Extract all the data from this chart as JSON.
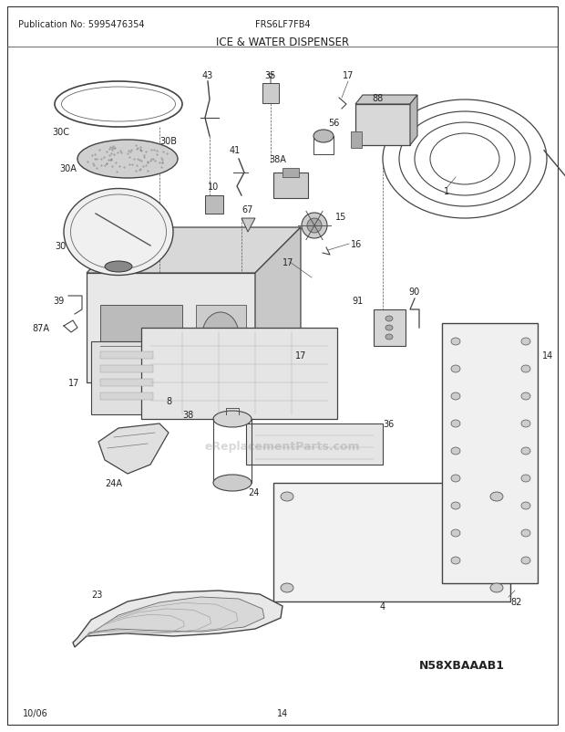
{
  "title": "ICE & WATER DISPENSER",
  "model": "FRS6LF7FB4",
  "publication": "Publication No: 5995476354",
  "date": "10/06",
  "page": "14",
  "diagram_id": "N58XBAAAB1",
  "bg_color": "#ffffff",
  "text_color": "#222222",
  "fig_width": 6.2,
  "fig_height": 8.03,
  "dpi": 100
}
